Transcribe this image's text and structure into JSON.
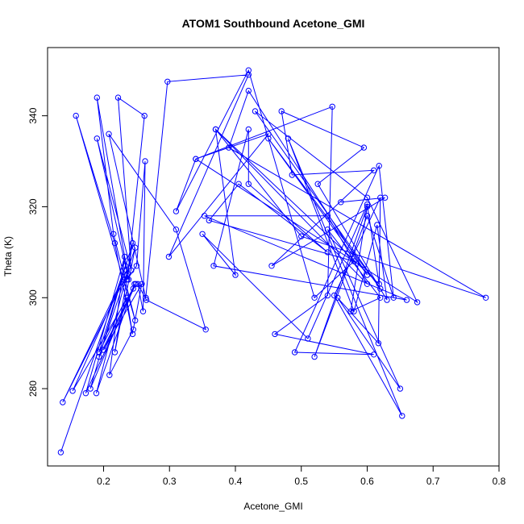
{
  "chart_data": {
    "type": "line",
    "title": "ATOM1 Southbound Acetone_GMI",
    "xlabel": "Acetone_GMI",
    "ylabel": "Theta (K)",
    "xlim": [
      0.115,
      0.8
    ],
    "ylim": [
      263,
      355
    ],
    "xticks": [
      0.2,
      0.3,
      0.4,
      0.5,
      0.6,
      0.7,
      0.8
    ],
    "xtick_labels": [
      "0.2",
      "0.3",
      "0.4",
      "0.5",
      "0.6",
      "0.7",
      "0.8"
    ],
    "yticks": [
      280,
      300,
      320,
      340
    ],
    "ytick_labels": [
      "280",
      "300",
      "320",
      "340"
    ],
    "grid": false,
    "legend": "none",
    "colors": {
      "series": "#0000ff",
      "axes": "#000000",
      "background": "#ffffff"
    },
    "series": [
      {
        "points": [
          [
            0.135,
            266
          ],
          [
            0.233,
            307
          ],
          [
            0.18,
            280
          ],
          [
            0.247,
            303
          ],
          [
            0.189,
            279
          ],
          [
            0.235,
            305
          ],
          [
            0.138,
            277
          ],
          [
            0.235,
            306
          ],
          [
            0.153,
            279.5
          ],
          [
            0.249,
            303
          ],
          [
            0.173,
            279
          ],
          [
            0.232,
            309
          ],
          [
            0.209,
            283
          ],
          [
            0.245,
            293
          ],
          [
            0.258,
            303
          ],
          [
            0.2,
            288.5
          ],
          [
            0.245,
            302
          ],
          [
            0.193,
            287
          ],
          [
            0.248,
            311
          ],
          [
            0.217,
            288
          ],
          [
            0.244,
            312
          ],
          [
            0.193,
            288
          ],
          [
            0.235,
            300
          ],
          [
            0.244,
            292
          ],
          [
            0.217,
            312
          ],
          [
            0.158,
            340
          ],
          [
            0.248,
            295
          ],
          [
            0.215,
            314
          ],
          [
            0.19,
            344
          ],
          [
            0.238,
            304
          ],
          [
            0.19,
            335
          ],
          [
            0.242,
            306
          ],
          [
            0.222,
            344
          ],
          [
            0.262,
            340
          ],
          [
            0.236,
            304
          ],
          [
            0.25,
            307
          ],
          [
            0.263,
            330
          ],
          [
            0.26,
            297
          ],
          [
            0.252,
            303
          ],
          [
            0.265,
            299.5
          ],
          [
            0.355,
            293
          ],
          [
            0.31,
            315
          ],
          [
            0.208,
            336
          ],
          [
            0.264,
            300
          ],
          [
            0.297,
            347.5
          ],
          [
            0.42,
            349
          ],
          [
            0.299,
            309
          ],
          [
            0.45,
            336
          ],
          [
            0.34,
            330.5
          ],
          [
            0.31,
            319
          ],
          [
            0.42,
            350
          ],
          [
            0.52,
            300
          ],
          [
            0.58,
            308
          ],
          [
            0.36,
            317
          ],
          [
            0.405,
            325
          ],
          [
            0.54,
            310
          ],
          [
            0.42,
            325
          ],
          [
            0.42,
            337
          ],
          [
            0.367,
            307
          ],
          [
            0.66,
            299.5
          ],
          [
            0.353,
            318
          ],
          [
            0.54,
            318
          ],
          [
            0.6,
            303
          ],
          [
            0.37,
            337
          ],
          [
            0.618,
            303
          ],
          [
            0.6,
            320.5
          ],
          [
            0.51,
            291
          ],
          [
            0.35,
            314
          ],
          [
            0.4,
            305
          ],
          [
            0.37,
            337
          ],
          [
            0.5,
            313.5
          ],
          [
            0.78,
            300
          ],
          [
            0.39,
            333
          ],
          [
            0.42,
            345.5
          ],
          [
            0.6,
            305
          ],
          [
            0.45,
            335
          ],
          [
            0.62,
            302
          ],
          [
            0.43,
            341
          ],
          [
            0.6,
            322
          ],
          [
            0.676,
            299
          ],
          [
            0.34,
            330.5
          ],
          [
            0.547,
            342
          ],
          [
            0.54,
            300.5
          ],
          [
            0.46,
            292
          ],
          [
            0.61,
            287.5
          ],
          [
            0.49,
            288
          ],
          [
            0.618,
            329
          ],
          [
            0.64,
            300
          ],
          [
            0.6,
            318
          ],
          [
            0.52,
            287
          ],
          [
            0.6,
            320
          ],
          [
            0.575,
            297
          ],
          [
            0.62,
            300
          ],
          [
            0.54,
            315
          ],
          [
            0.65,
            280
          ],
          [
            0.555,
            300
          ],
          [
            0.617,
            290
          ],
          [
            0.62,
            322
          ],
          [
            0.55,
            300.5
          ],
          [
            0.653,
            274
          ],
          [
            0.48,
            335
          ],
          [
            0.58,
            297
          ],
          [
            0.615,
            316
          ],
          [
            0.63,
            299.5
          ],
          [
            0.525,
            325
          ],
          [
            0.595,
            333
          ],
          [
            0.47,
            341
          ],
          [
            0.486,
            327
          ],
          [
            0.61,
            328
          ],
          [
            0.455,
            307
          ],
          [
            0.627,
            322
          ],
          [
            0.56,
            321
          ]
        ]
      }
    ]
  }
}
